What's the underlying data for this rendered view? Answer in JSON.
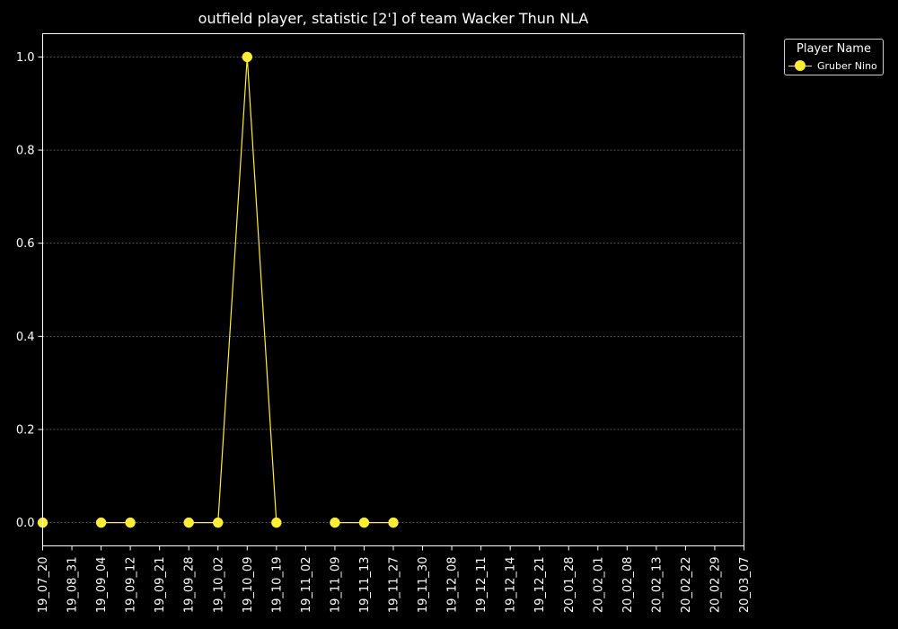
{
  "chart_data": {
    "type": "line",
    "title": "outfield player, statistic [2'] of team Wacker Thun NLA",
    "xlabel": "",
    "ylabel": "",
    "categories": [
      "19_07_20",
      "19_08_31",
      "19_09_04",
      "19_09_12",
      "19_09_21",
      "19_09_28",
      "19_10_02",
      "19_10_09",
      "19_10_19",
      "19_11_02",
      "19_11_09",
      "19_11_13",
      "19_11_27",
      "19_11_30",
      "19_12_08",
      "19_12_11",
      "19_12_14",
      "19_12_21",
      "20_01_28",
      "20_02_01",
      "20_02_08",
      "20_02_13",
      "20_02_22",
      "20_02_29",
      "20_03_07"
    ],
    "series": [
      {
        "name": "Gruber Nino",
        "color": "#ffee33",
        "values": [
          0,
          null,
          0,
          0,
          null,
          0,
          0,
          1.0,
          0,
          null,
          0,
          0,
          0,
          null,
          null,
          null,
          null,
          null,
          null,
          null,
          null,
          null,
          null,
          null,
          null
        ]
      }
    ],
    "yticks": [
      "0.0",
      "0.2",
      "0.4",
      "0.6",
      "0.8",
      "1.0"
    ],
    "ytick_values": [
      0,
      0.2,
      0.4,
      0.6,
      0.8,
      1.0
    ],
    "ylim": [
      -0.05,
      1.05
    ],
    "grid": true,
    "legend_title": "Player Name",
    "legend_position": "outside top-right",
    "colors": {
      "background": "#000000",
      "axes": "#ffffff",
      "grid": "#888888"
    }
  }
}
